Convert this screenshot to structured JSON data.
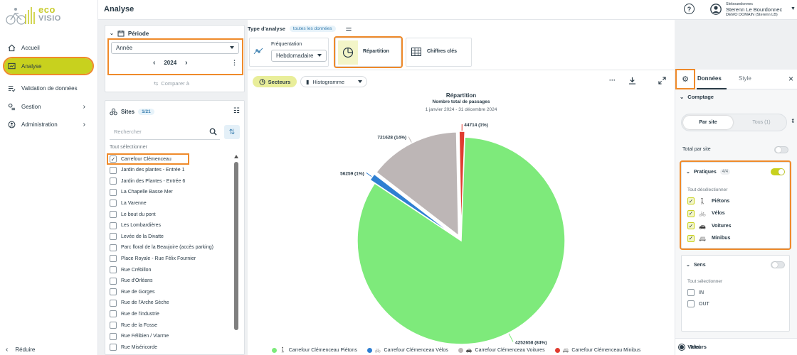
{
  "brand": {
    "line1": "eco",
    "line2": "VISIO"
  },
  "nav": {
    "items": [
      {
        "label": "Accueil"
      },
      {
        "label": "Analyse"
      },
      {
        "label": "Validation de données"
      },
      {
        "label": "Gestion"
      },
      {
        "label": "Administration"
      }
    ],
    "collapse": "Réduire"
  },
  "header": {
    "title": "Analyse",
    "help": "?"
  },
  "user": {
    "login": "Sleboundonnec",
    "name": "Sterenn Le Bourdonnec",
    "org": "DEMO DOMAIN (Sterenn LB)"
  },
  "periode": {
    "title": "Période",
    "granularity": "Année",
    "year": "2024",
    "compare": "Comparer à"
  },
  "sites": {
    "title": "Sites",
    "count": "1/21",
    "search_placeholder": "Rechercher",
    "select_all": "Tout sélectionner",
    "items": [
      {
        "label": "Carrefour Clémenceau",
        "checked": true
      },
      {
        "label": "Jardin des plantes - Entrée 1",
        "checked": false
      },
      {
        "label": "Jardin des Plantes - Entrée 6",
        "checked": false
      },
      {
        "label": "La Chapelle Basse Mer",
        "checked": false
      },
      {
        "label": "La Varenne",
        "checked": false
      },
      {
        "label": "Le bout du pont",
        "checked": false
      },
      {
        "label": "Les Lombardières",
        "checked": false
      },
      {
        "label": "Levée de la Divatte",
        "checked": false
      },
      {
        "label": "Parc floral de la Beaujoire (accès parking)",
        "checked": false
      },
      {
        "label": "Place Royale - Rue Félix Fournier",
        "checked": false
      },
      {
        "label": "Rue Crébillon",
        "checked": false
      },
      {
        "label": "Rue d'Orléans",
        "checked": false
      },
      {
        "label": "Rue de Gorges",
        "checked": false
      },
      {
        "label": "Rue de l'Arche Sèche",
        "checked": false
      },
      {
        "label": "Rue de l'industrie",
        "checked": false
      },
      {
        "label": "Rue de la Fosse",
        "checked": false
      },
      {
        "label": "Rue Félibien / Viarme",
        "checked": false
      },
      {
        "label": "Rue Miséricorde",
        "checked": false
      }
    ]
  },
  "analysis": {
    "label": "Type d'analyse",
    "filter_chip": "toutes les données",
    "frequentation": "Fréquentation",
    "frequentation_value": "Hebdomadaire",
    "repartition": "Répartition",
    "chiffres": "Chiffres clés"
  },
  "chart_toolbar": {
    "secteurs": "Secteurs",
    "histogramme": "Histogramme",
    "more": "···"
  },
  "chart_data": {
    "type": "pie",
    "title": "Répartition",
    "subtitle": "Nombre total de passages",
    "period": "1 janvier 2024 - 31 décembre 2024",
    "slices": [
      {
        "name": "Carrefour Clémenceau Piétons",
        "value": 4252658,
        "label": "4252658 (84%)",
        "color": "#7eea7b"
      },
      {
        "name": "Carrefour Clémenceau Vélos",
        "value": 56259,
        "label": "56259 (1%)",
        "color": "#2f7fd2"
      },
      {
        "name": "Carrefour Clémenceau Voitures",
        "value": 721628,
        "label": "721628 (14%)",
        "color": "#bdb6b6"
      },
      {
        "name": "Carrefour Clémenceau Minibus",
        "value": 44714,
        "label": "44714 (1%)",
        "color": "#e03c30"
      }
    ]
  },
  "right_panel": {
    "tab_donnees": "Données",
    "tab_style": "Style",
    "comptage": "Comptage",
    "par_site": "Par site",
    "tous": "Tous (1)",
    "total_par_site": "Total par site",
    "pratiques": "Pratiques",
    "pratiques_count": "4/4",
    "deselect_all": "Tout désélectionner",
    "pratiques_items": [
      {
        "label": "Piétons"
      },
      {
        "label": "Vélos"
      },
      {
        "label": "Voitures"
      },
      {
        "label": "Minibus"
      }
    ],
    "sens": "Sens",
    "sens_select_all": "Tout sélectionner",
    "sens_items": [
      {
        "label": "IN"
      },
      {
        "label": "OUT"
      }
    ],
    "valeurs": "Valeurs",
    "total": "Total"
  },
  "colors": {
    "accent": "#c8d11e",
    "highlight": "#ef8a2a",
    "text": "#2a3b47"
  }
}
